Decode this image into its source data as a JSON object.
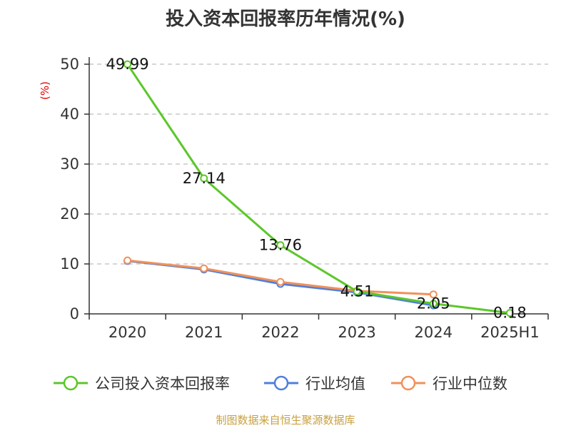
{
  "title": "投入资本回报率历年情况(%)",
  "source": "制图数据来自恒生聚源数据库",
  "chart_data": {
    "type": "line",
    "categories": [
      "2020",
      "2021",
      "2022",
      "2023",
      "2024",
      "2025H1"
    ],
    "ylabel": "(%)",
    "ylim": [
      0,
      50
    ],
    "yticks": [
      0,
      10,
      20,
      30,
      40,
      50
    ],
    "grid": true,
    "legend_position": "bottom",
    "series": [
      {
        "name": "公司投入资本回报率",
        "color": "#5cc72a",
        "values": [
          49.99,
          27.14,
          13.76,
          4.51,
          2.05,
          0.18
        ],
        "labels": [
          "49.99",
          "27.14",
          "13.76",
          "4.51",
          "2.05",
          "0.18"
        ]
      },
      {
        "name": "行业均值",
        "color": "#4f7fdc",
        "values": [
          10.6,
          8.9,
          6.0,
          4.3,
          1.7,
          null
        ]
      },
      {
        "name": "行业中位数",
        "color": "#f0915a",
        "values": [
          10.7,
          9.1,
          6.4,
          4.6,
          3.9,
          null
        ]
      }
    ]
  }
}
